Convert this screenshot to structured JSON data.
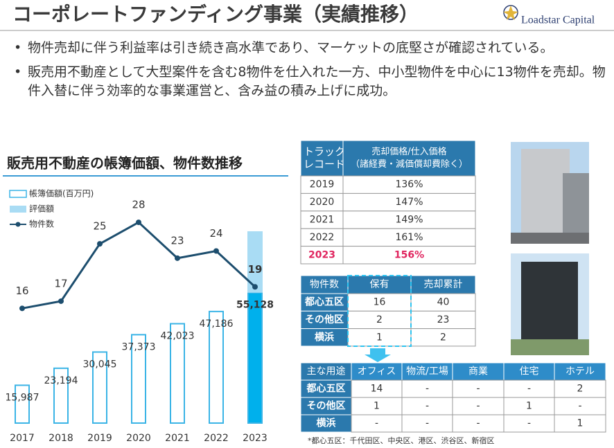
{
  "header": {
    "title": "コーポレートファンディング事業（実績推移）",
    "logo": "Loadstar Capital"
  },
  "bullets": [
    "物件売却に伴う利益率は引き続き高水準であり、マーケットの底堅さが確認されている。",
    "販売用不動産として大型案件を含む8物件を仕入れた一方、中小型物件を中心に13物件を売却。物件入替に伴う効率的な事業運営と、含み益の積み上げに成功。"
  ],
  "chart_data": {
    "type": "bar",
    "title": "販売用不動産の帳簿価額、物件数推移",
    "categories": [
      "2017",
      "2018",
      "2019",
      "2020",
      "2021",
      "2022",
      "2023"
    ],
    "series": [
      {
        "name": "帳簿価額(百万円)",
        "color": "#3ab4e6",
        "fill_colors": [
          "#ffffff",
          "#ffffff",
          "#ffffff",
          "#ffffff",
          "#ffffff",
          "#ffffff",
          "#00b0ec"
        ],
        "values": [
          15987,
          23194,
          30045,
          37373,
          42023,
          47186,
          55128
        ],
        "value_labels": [
          "15,987",
          "23,194",
          "30,045",
          "37,373",
          "42,023",
          "47,186",
          "55,128"
        ]
      },
      {
        "name": "評価額",
        "color": "#a9dcf4",
        "stack": true,
        "values": [
          null,
          null,
          null,
          null,
          null,
          null,
          26000
        ]
      },
      {
        "name": "物件数",
        "type": "line",
        "axis": "y2",
        "color": "#1d4e6e",
        "values": [
          16,
          17,
          25,
          28,
          23,
          24,
          19
        ]
      }
    ],
    "ylim": [
      0,
      94000
    ],
    "y2lim": [
      0,
      31
    ]
  },
  "track_record": {
    "header": [
      [
        "トラック",
        "レコード"
      ],
      [
        "売却価格/仕入価格",
        "（諸経費・減価償却費除く）"
      ]
    ],
    "rows": [
      [
        "2019",
        "136%"
      ],
      [
        "2020",
        "147%"
      ],
      [
        "2021",
        "149%"
      ],
      [
        "2022",
        "161%"
      ],
      [
        "2023",
        "156%"
      ]
    ],
    "highlight_row": 4
  },
  "holdings": {
    "header": [
      "物件数",
      "保有",
      "売却累計"
    ],
    "rows": [
      [
        "都心五区",
        "16",
        "40"
      ],
      [
        "その他区",
        "2",
        "23"
      ],
      [
        "横浜",
        "1",
        "2"
      ]
    ]
  },
  "usage": {
    "header": [
      "主な用途",
      "オフィス",
      "物流/工場",
      "商業",
      "住宅",
      "ホテル"
    ],
    "rows": [
      [
        "都心五区",
        "14",
        "-",
        "-",
        "-",
        "2"
      ],
      [
        "その他区",
        "1",
        "-",
        "-",
        "1",
        "-"
      ],
      [
        "横浜",
        "-",
        "-",
        "-",
        "-",
        "1"
      ]
    ]
  },
  "footnote": "*都心五区：千代田区、中央区、港区、渋谷区、新宿区"
}
